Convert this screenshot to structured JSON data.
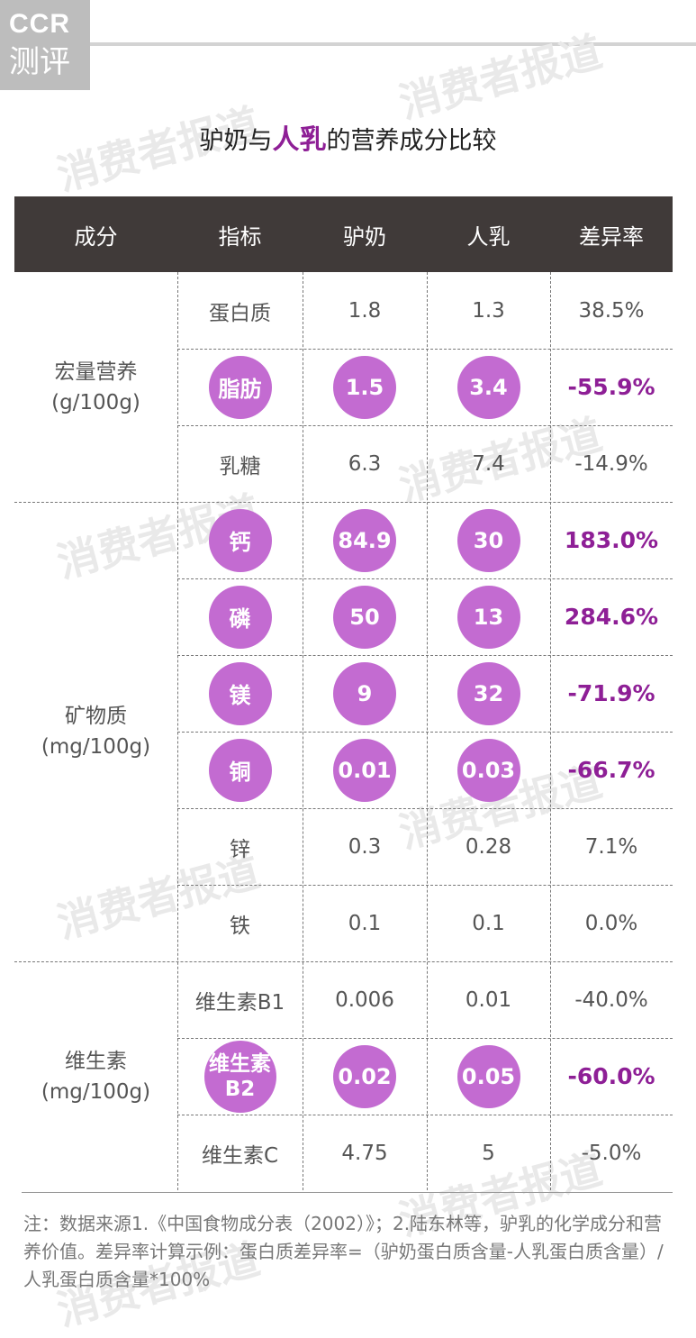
{
  "logo": {
    "line1": "CCR",
    "line2": "测评"
  },
  "watermark": "消费者报道",
  "title": {
    "prefix": "驴奶与",
    "highlight": "人乳",
    "suffix": "的营养成分比较"
  },
  "colors": {
    "header_bg": "#403a39",
    "highlight": "#8e1f96",
    "circle": "#c36bd1"
  },
  "chart_data": {
    "type": "table",
    "columns": [
      "成分",
      "指标",
      "驴奶",
      "人乳",
      "差异率"
    ],
    "groups": [
      {
        "name": "宏量营养",
        "unit": "(g/100g)"
      },
      {
        "name": "矿物质",
        "unit": "(mg/100g)"
      },
      {
        "name": "维生素",
        "unit": "(mg/100g)"
      }
    ],
    "rows": [
      {
        "group": 0,
        "indicator": "蛋白质",
        "donkey": "1.8",
        "human": "1.3",
        "diff": "38.5%",
        "highlight": false
      },
      {
        "group": 0,
        "indicator": "脂肪",
        "donkey": "1.5",
        "human": "3.4",
        "diff": "-55.9%",
        "highlight": true
      },
      {
        "group": 0,
        "indicator": "乳糖",
        "donkey": "6.3",
        "human": "7.4",
        "diff": "-14.9%",
        "highlight": false
      },
      {
        "group": 1,
        "indicator": "钙",
        "donkey": "84.9",
        "human": "30",
        "diff": "183.0%",
        "highlight": true
      },
      {
        "group": 1,
        "indicator": "磷",
        "donkey": "50",
        "human": "13",
        "diff": "284.6%",
        "highlight": true
      },
      {
        "group": 1,
        "indicator": "镁",
        "donkey": "9",
        "human": "32",
        "diff": "-71.9%",
        "highlight": true
      },
      {
        "group": 1,
        "indicator": "铜",
        "donkey": "0.01",
        "human": "0.03",
        "diff": "-66.7%",
        "highlight": true
      },
      {
        "group": 1,
        "indicator": "锌",
        "donkey": "0.3",
        "human": "0.28",
        "diff": "7.1%",
        "highlight": false
      },
      {
        "group": 1,
        "indicator": "铁",
        "donkey": "0.1",
        "human": "0.1",
        "diff": "0.0%",
        "highlight": false
      },
      {
        "group": 2,
        "indicator": "维生素B1",
        "donkey": "0.006",
        "human": "0.01",
        "diff": "-40.0%",
        "highlight": false
      },
      {
        "group": 2,
        "indicator": "维生素B2",
        "indicator_lines": [
          "维生素",
          "B2"
        ],
        "donkey": "0.02",
        "human": "0.05",
        "diff": "-60.0%",
        "highlight": true
      },
      {
        "group": 2,
        "indicator": "维生素C",
        "donkey": "4.75",
        "human": "5",
        "diff": "-5.0%",
        "highlight": false
      }
    ]
  },
  "note": "注：数据来源1.《中国食物成分表（2002）》；2.陆东林等，驴乳的化学成分和营养价值。差异率计算示例：蛋白质差异率=（驴奶蛋白质含量-人乳蛋白质含量）/人乳蛋白质含量*100%"
}
